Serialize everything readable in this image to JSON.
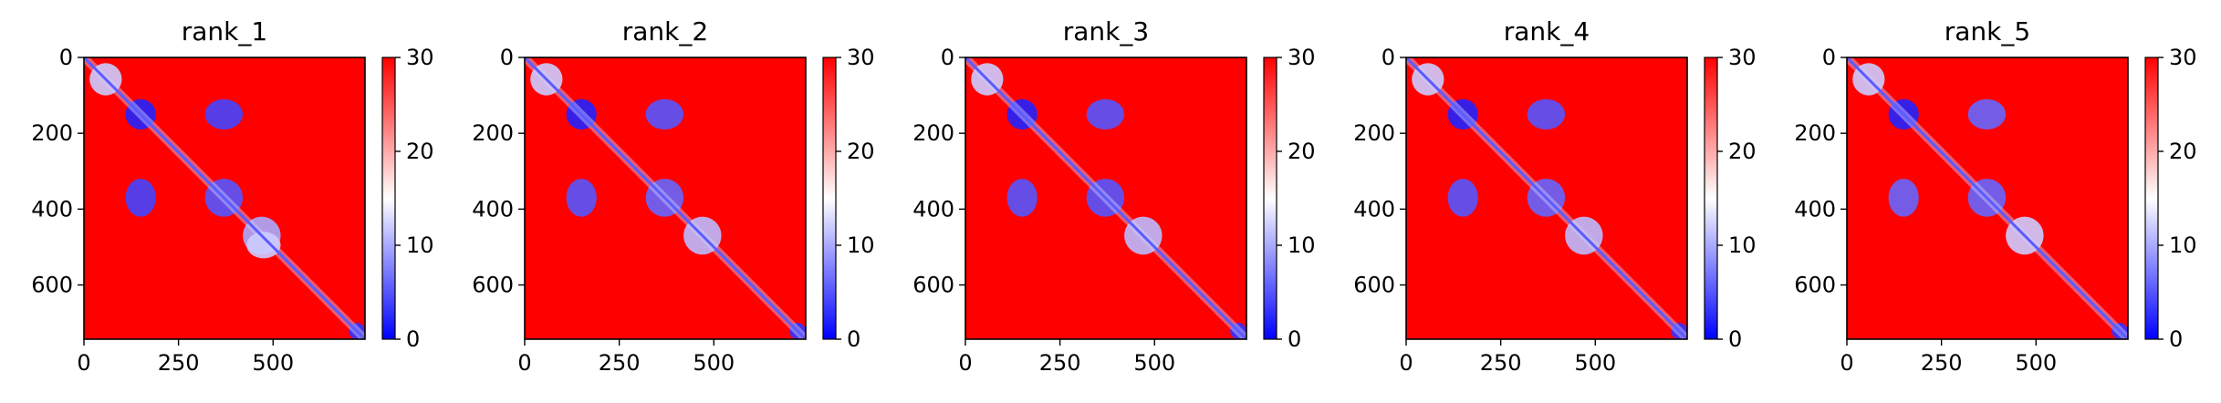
{
  "chart_data": [
    {
      "type": "heatmap",
      "title": "rank_1",
      "xlabel": "",
      "ylabel": "",
      "n": 743,
      "xlim": [
        0,
        743
      ],
      "ylim": [
        743,
        0
      ],
      "x_ticks": [
        0,
        250,
        500
      ],
      "x_tick_labels": [
        "0",
        "250",
        "500"
      ],
      "y_ticks": [
        0,
        200,
        400,
        600
      ],
      "y_tick_labels": [
        "0",
        "200",
        "400",
        "600"
      ],
      "colorbar": {
        "range": [
          0,
          30
        ],
        "ticks": [
          0,
          10,
          20,
          30
        ],
        "tick_labels": [
          "0",
          "10",
          "20",
          "30"
        ],
        "colors": [
          "#0000ff",
          "#ffffff",
          "#ff0000"
        ]
      },
      "background_value": 30,
      "diagonal_value": 0,
      "low_regions": [
        {
          "x": [
            15,
            100
          ],
          "y": [
            15,
            100
          ],
          "value": 12
        },
        {
          "x": [
            110,
            190
          ],
          "y": [
            110,
            190
          ],
          "value": 2
        },
        {
          "x": [
            320,
            420
          ],
          "y": [
            110,
            190
          ],
          "value": 4
        },
        {
          "x": [
            110,
            190
          ],
          "y": [
            320,
            420
          ],
          "value": 4
        },
        {
          "x": [
            320,
            420
          ],
          "y": [
            320,
            420
          ],
          "value": 5
        },
        {
          "x": [
            420,
            520
          ],
          "y": [
            420,
            520
          ],
          "value": 10
        },
        {
          "x": [
            430,
            520
          ],
          "y": [
            460,
            530
          ],
          "value": 12
        },
        {
          "x": [
            700,
            743
          ],
          "y": [
            700,
            743
          ],
          "value": 3
        }
      ]
    },
    {
      "type": "heatmap",
      "title": "rank_2",
      "xlabel": "",
      "ylabel": "",
      "n": 743,
      "xlim": [
        0,
        743
      ],
      "ylim": [
        743,
        0
      ],
      "x_ticks": [
        0,
        250,
        500
      ],
      "x_tick_labels": [
        "0",
        "250",
        "500"
      ],
      "y_ticks": [
        0,
        200,
        400,
        600
      ],
      "y_tick_labels": [
        "0",
        "200",
        "400",
        "600"
      ],
      "colorbar": {
        "range": [
          0,
          30
        ],
        "ticks": [
          0,
          10,
          20,
          30
        ],
        "tick_labels": [
          "0",
          "10",
          "20",
          "30"
        ],
        "colors": [
          "#0000ff",
          "#ffffff",
          "#ff0000"
        ]
      },
      "background_value": 30,
      "diagonal_value": 0,
      "low_regions": [
        {
          "x": [
            15,
            100
          ],
          "y": [
            15,
            100
          ],
          "value": 12
        },
        {
          "x": [
            110,
            190
          ],
          "y": [
            110,
            190
          ],
          "value": 2
        },
        {
          "x": [
            320,
            420
          ],
          "y": [
            110,
            190
          ],
          "value": 5
        },
        {
          "x": [
            110,
            190
          ],
          "y": [
            320,
            420
          ],
          "value": 5
        },
        {
          "x": [
            320,
            420
          ],
          "y": [
            320,
            420
          ],
          "value": 6
        },
        {
          "x": [
            420,
            520
          ],
          "y": [
            420,
            520
          ],
          "value": 11
        },
        {
          "x": [
            700,
            743
          ],
          "y": [
            700,
            743
          ],
          "value": 3
        }
      ]
    },
    {
      "type": "heatmap",
      "title": "rank_3",
      "xlabel": "",
      "ylabel": "",
      "n": 743,
      "xlim": [
        0,
        743
      ],
      "ylim": [
        743,
        0
      ],
      "x_ticks": [
        0,
        250,
        500
      ],
      "x_tick_labels": [
        "0",
        "250",
        "500"
      ],
      "y_ticks": [
        0,
        200,
        400,
        600
      ],
      "y_tick_labels": [
        "0",
        "200",
        "400",
        "600"
      ],
      "colorbar": {
        "range": [
          0,
          30
        ],
        "ticks": [
          0,
          10,
          20,
          30
        ],
        "tick_labels": [
          "0",
          "10",
          "20",
          "30"
        ],
        "colors": [
          "#0000ff",
          "#ffffff",
          "#ff0000"
        ]
      },
      "background_value": 30,
      "diagonal_value": 0,
      "low_regions": [
        {
          "x": [
            15,
            100
          ],
          "y": [
            15,
            100
          ],
          "value": 12
        },
        {
          "x": [
            110,
            190
          ],
          "y": [
            110,
            190
          ],
          "value": 2
        },
        {
          "x": [
            320,
            420
          ],
          "y": [
            110,
            190
          ],
          "value": 5
        },
        {
          "x": [
            110,
            190
          ],
          "y": [
            320,
            420
          ],
          "value": 5
        },
        {
          "x": [
            320,
            420
          ],
          "y": [
            320,
            420
          ],
          "value": 5
        },
        {
          "x": [
            420,
            520
          ],
          "y": [
            420,
            520
          ],
          "value": 11
        },
        {
          "x": [
            700,
            743
          ],
          "y": [
            700,
            743
          ],
          "value": 3
        }
      ]
    },
    {
      "type": "heatmap",
      "title": "rank_4",
      "xlabel": "",
      "ylabel": "",
      "n": 743,
      "xlim": [
        0,
        743
      ],
      "ylim": [
        743,
        0
      ],
      "x_ticks": [
        0,
        250,
        500
      ],
      "x_tick_labels": [
        "0",
        "250",
        "500"
      ],
      "y_ticks": [
        0,
        200,
        400,
        600
      ],
      "y_tick_labels": [
        "0",
        "200",
        "400",
        "600"
      ],
      "colorbar": {
        "range": [
          0,
          30
        ],
        "ticks": [
          0,
          10,
          20,
          30
        ],
        "tick_labels": [
          "0",
          "10",
          "20",
          "30"
        ],
        "colors": [
          "#0000ff",
          "#ffffff",
          "#ff0000"
        ]
      },
      "background_value": 30,
      "diagonal_value": 0,
      "low_regions": [
        {
          "x": [
            15,
            100
          ],
          "y": [
            15,
            100
          ],
          "value": 12
        },
        {
          "x": [
            110,
            190
          ],
          "y": [
            110,
            190
          ],
          "value": 2
        },
        {
          "x": [
            320,
            420
          ],
          "y": [
            110,
            190
          ],
          "value": 5
        },
        {
          "x": [
            110,
            190
          ],
          "y": [
            320,
            420
          ],
          "value": 5
        },
        {
          "x": [
            320,
            420
          ],
          "y": [
            320,
            420
          ],
          "value": 6
        },
        {
          "x": [
            420,
            520
          ],
          "y": [
            420,
            520
          ],
          "value": 11
        },
        {
          "x": [
            700,
            743
          ],
          "y": [
            700,
            743
          ],
          "value": 3
        }
      ]
    },
    {
      "type": "heatmap",
      "title": "rank_5",
      "xlabel": "",
      "ylabel": "",
      "n": 743,
      "xlim": [
        0,
        743
      ],
      "ylim": [
        743,
        0
      ],
      "x_ticks": [
        0,
        250,
        500
      ],
      "x_tick_labels": [
        "0",
        "250",
        "500"
      ],
      "y_ticks": [
        0,
        200,
        400,
        600
      ],
      "y_tick_labels": [
        "0",
        "200",
        "400",
        "600"
      ],
      "colorbar": {
        "range": [
          0,
          30
        ],
        "ticks": [
          0,
          10,
          20,
          30
        ],
        "tick_labels": [
          "0",
          "10",
          "20",
          "30"
        ],
        "colors": [
          "#0000ff",
          "#ffffff",
          "#ff0000"
        ]
      },
      "background_value": 30,
      "diagonal_value": 0,
      "low_regions": [
        {
          "x": [
            15,
            100
          ],
          "y": [
            15,
            100
          ],
          "value": 12
        },
        {
          "x": [
            110,
            190
          ],
          "y": [
            110,
            190
          ],
          "value": 2
        },
        {
          "x": [
            320,
            420
          ],
          "y": [
            110,
            190
          ],
          "value": 6
        },
        {
          "x": [
            110,
            190
          ],
          "y": [
            320,
            420
          ],
          "value": 6
        },
        {
          "x": [
            320,
            420
          ],
          "y": [
            320,
            420
          ],
          "value": 6
        },
        {
          "x": [
            420,
            520
          ],
          "y": [
            420,
            520
          ],
          "value": 12
        },
        {
          "x": [
            700,
            743
          ],
          "y": [
            700,
            743
          ],
          "value": 3
        }
      ]
    }
  ]
}
